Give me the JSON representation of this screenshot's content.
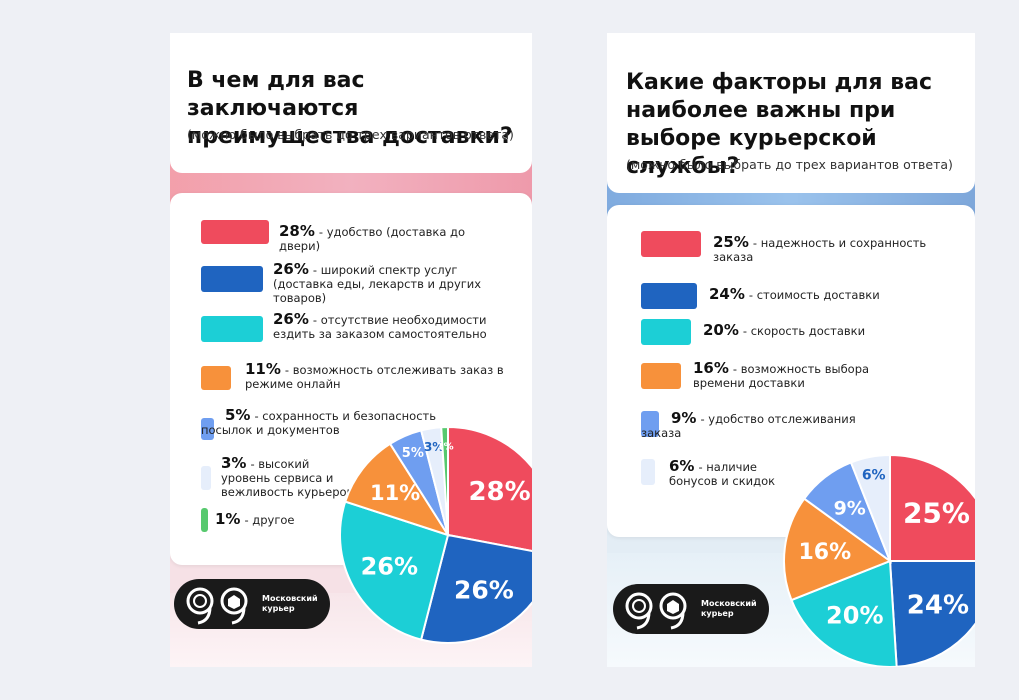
{
  "chart_data": [
    {
      "type": "pie",
      "title": "В чем для вас заключаются преимущества доставки?",
      "subtitle": "(можно было выбрать до трех вариантов ответа)",
      "slices": [
        {
          "value": 28,
          "pct_label": "28%",
          "label": "- удобство (доставка до двери)",
          "color": "#ef4b5d"
        },
        {
          "value": 26,
          "pct_label": "26%",
          "label": "- широкий спектр услуг (доставка еды, лекарств и других товаров)",
          "color": "#1f64c0"
        },
        {
          "value": 26,
          "pct_label": "26%",
          "label": "- отсутствие необходимости ездить за заказом самостоятельно",
          "color": "#1ccfd6"
        },
        {
          "value": 11,
          "pct_label": "11%",
          "label": "- возможность отслеживать заказ в режиме онлайн",
          "color": "#f7913b"
        },
        {
          "value": 5,
          "pct_label": "5%",
          "label": "- сохранность и безопасность посылок и документов",
          "color": "#6f9ef0"
        },
        {
          "value": 3,
          "pct_label": "3%",
          "label": "- высокий уровень сервиса и вежливость курьеров",
          "color": "#e6eefb"
        },
        {
          "value": 1,
          "pct_label": "1%",
          "label": "- другое",
          "color": "#57c96e"
        }
      ]
    },
    {
      "type": "pie",
      "title": "Какие факторы для вас наиболее важны при выборе курьерской службы?",
      "subtitle": "(можно было выбрать до трех вариантов ответа)",
      "slices": [
        {
          "value": 25,
          "pct_label": "25%",
          "label": "- надежность и сохранность заказа",
          "color": "#ef4b5d"
        },
        {
          "value": 24,
          "pct_label": "24%",
          "label": "- стоимость доставки",
          "color": "#1f64c0"
        },
        {
          "value": 20,
          "pct_label": "20%",
          "label": "- скорость доставки",
          "color": "#1ccfd6"
        },
        {
          "value": 16,
          "pct_label": "16%",
          "label": "- возможность выбора времени доставки",
          "color": "#f7913b"
        },
        {
          "value": 9,
          "pct_label": "9%",
          "label": "- удобство отслеживания заказа",
          "color": "#6f9ef0"
        },
        {
          "value": 6,
          "pct_label": "6%",
          "label": "- наличие бонусов и скидок",
          "color": "#e6eefb"
        }
      ]
    }
  ],
  "brand": {
    "name_line1": "Московский",
    "name_line2": "курьер"
  }
}
